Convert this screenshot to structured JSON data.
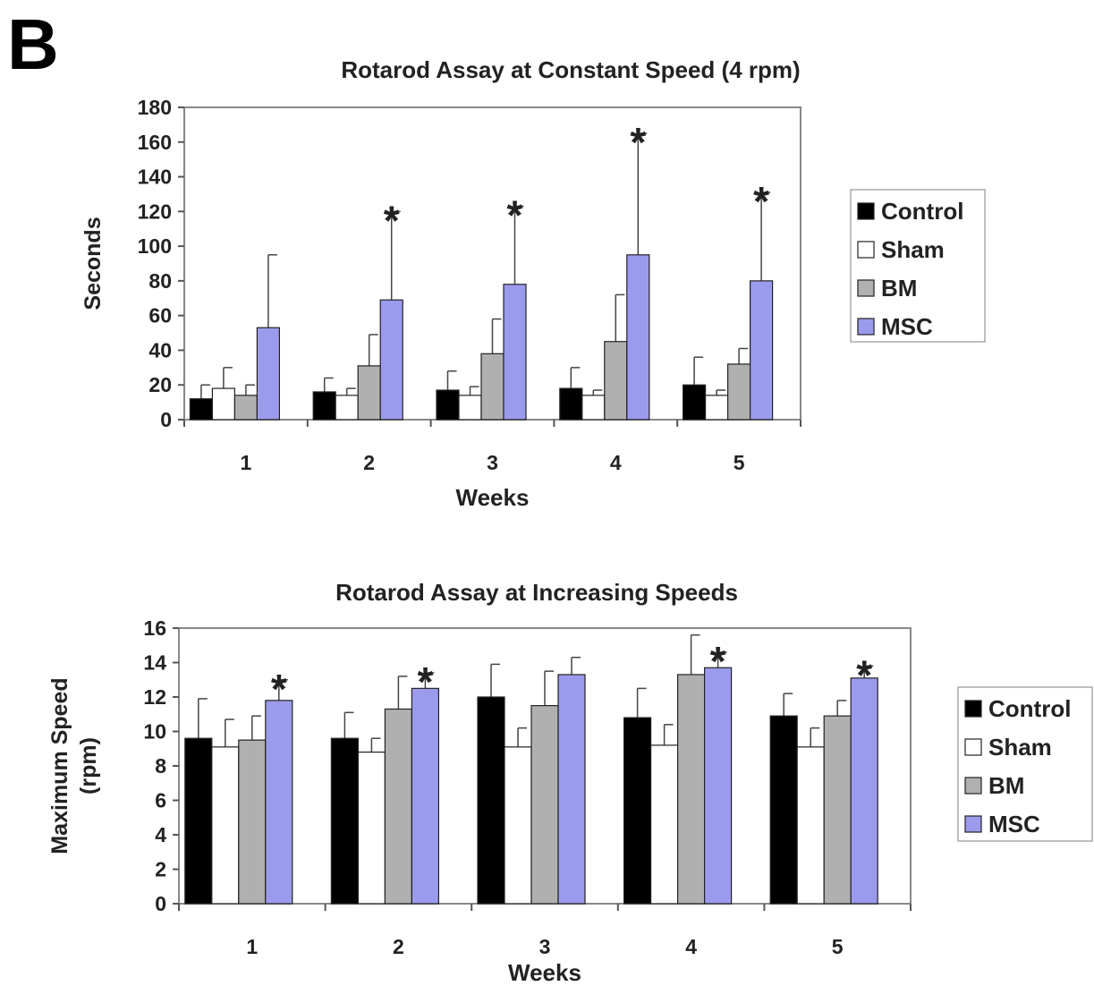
{
  "panel_label": "B",
  "colors": {
    "Control": "#000000",
    "Sham": "#ffffff",
    "BM": "#b0b0b0",
    "MSC": "#9b9bee",
    "axis": "#555555",
    "plot_border": "#888888"
  },
  "chart_data": [
    {
      "type": "bar",
      "title": "Rotarod Assay at Constant Speed (4 rpm)",
      "xlabel": "Weeks",
      "ylabel": "Seconds",
      "ylim": [
        0,
        180
      ],
      "yticks": [
        "0",
        "20",
        "40",
        "60",
        "80",
        "100",
        "120",
        "140",
        "160",
        "180"
      ],
      "categories": [
        "1",
        "2",
        "3",
        "4",
        "5"
      ],
      "legend": [
        "Control",
        "Sham",
        "BM",
        "MSC"
      ],
      "legend_position": "right",
      "series": [
        {
          "name": "Control",
          "values": [
            12,
            16,
            17,
            18,
            20
          ],
          "errors": [
            8,
            8,
            11,
            12,
            16
          ]
        },
        {
          "name": "Sham",
          "values": [
            18,
            14,
            14,
            14,
            14
          ],
          "errors": [
            12,
            4,
            5,
            3,
            3
          ]
        },
        {
          "name": "BM",
          "values": [
            14,
            31,
            38,
            45,
            32
          ],
          "errors": [
            6,
            18,
            20,
            27,
            9
          ]
        },
        {
          "name": "MSC",
          "values": [
            53,
            69,
            78,
            95,
            80
          ],
          "errors": [
            42,
            51,
            45,
            70,
            51
          ]
        }
      ],
      "significance": {
        "marker": "*",
        "series": "MSC",
        "categories": [
          "2",
          "3",
          "4",
          "5"
        ]
      }
    },
    {
      "type": "bar",
      "title": "Rotarod Assay at Increasing Speeds",
      "xlabel": "Weeks",
      "ylabel": "Maximum Speed (rpm)",
      "ylim": [
        0,
        16
      ],
      "yticks": [
        "0",
        "2",
        "4",
        "6",
        "8",
        "10",
        "12",
        "14",
        "16"
      ],
      "categories": [
        "1",
        "2",
        "3",
        "4",
        "5"
      ],
      "legend": [
        "Control",
        "Sham",
        "BM",
        "MSC"
      ],
      "legend_position": "right",
      "series": [
        {
          "name": "Control",
          "values": [
            9.6,
            9.6,
            12,
            10.8,
            10.9
          ],
          "errors": [
            2.3,
            1.5,
            1.9,
            1.7,
            1.3
          ]
        },
        {
          "name": "Sham",
          "values": [
            9.1,
            8.8,
            9.1,
            9.2,
            9.1
          ],
          "errors": [
            1.6,
            0.8,
            1.1,
            1.2,
            1.1
          ]
        },
        {
          "name": "BM",
          "values": [
            9.5,
            11.3,
            11.5,
            13.3,
            10.9
          ],
          "errors": [
            1.4,
            1.9,
            2.0,
            2.3,
            0.9
          ]
        },
        {
          "name": "MSC",
          "values": [
            11.8,
            12.5,
            13.3,
            13.7,
            13.1
          ],
          "errors": [
            1.2,
            0.9,
            1.0,
            0.9,
            0.7
          ]
        }
      ],
      "significance": {
        "marker": "*",
        "series": "MSC",
        "categories": [
          "1",
          "2",
          "4",
          "5"
        ]
      }
    }
  ]
}
